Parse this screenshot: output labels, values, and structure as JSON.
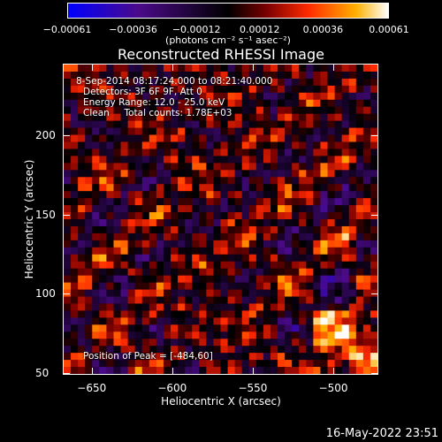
{
  "chart_data": {
    "type": "heatmap",
    "title": "Reconstructed RHESSI Image",
    "xlabel": "Heliocentric X (arcsec)",
    "ylabel": "Heliocentric Y (arcsec)",
    "xlim": [
      -668,
      -472
    ],
    "ylim": [
      49,
      245
    ],
    "xticks": [
      -650,
      -600,
      -550,
      -500
    ],
    "xtick_labels": [
      "−650",
      "−600",
      "−550",
      "−500"
    ],
    "yticks": [
      50,
      100,
      150,
      200
    ],
    "ytick_labels": [
      "50",
      "100",
      "150",
      "200"
    ],
    "colorbar": {
      "range": [
        -0.00061,
        0.00061
      ],
      "ticks": [
        -0.00061,
        -0.00036,
        -0.00012,
        0.00012,
        0.00036,
        0.00061
      ],
      "tick_labels": [
        "−0.00061",
        "−0.00036",
        "−0.00012",
        "0.00012",
        "0.00036",
        "0.00061"
      ],
      "units": "(photons cm⁻² s⁻¹ asec⁻²)",
      "colormap": [
        "#0000ff",
        "#4b0a8a",
        "#000000",
        "#7a0000",
        "#ff2a00",
        "#ffb000",
        "#ffffff"
      ]
    },
    "annotations": {
      "time": "8-Sep-2014 08:17:24.000 to 08:21:40.000",
      "detectors": "Detectors: 3F 6F 9F, Att 0",
      "energy": "Energy Range: 12.0 - 25.0 keV",
      "method": "Clean     Total counts: 1.78E+03",
      "peak": "Position of Peak = [-484,60]"
    }
  },
  "timestamp": "16-May-2022 23:51"
}
